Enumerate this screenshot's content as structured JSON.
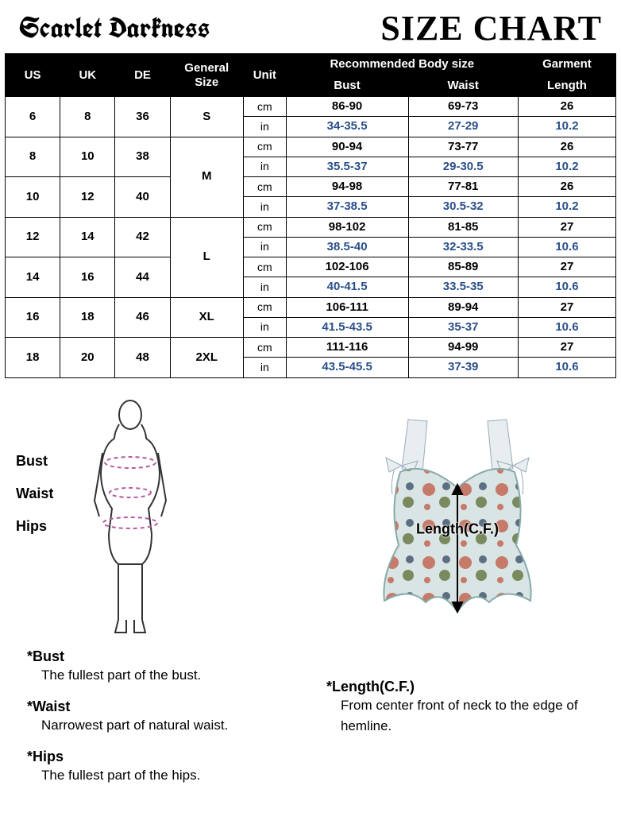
{
  "header": {
    "brand": "Scarlet Darkness",
    "title": "SIZE CHART"
  },
  "table": {
    "type": "table",
    "background_color": "#ffffff",
    "header_bg": "#000000",
    "header_color": "#ffffff",
    "border_color": "#000000",
    "cm_color": "#000000",
    "in_color": "#2a4f8a",
    "header_fontsize_pt": 11,
    "body_fontsize_pt": 11,
    "columns_top": [
      "US",
      "UK",
      "DE",
      "General Size",
      "Unit",
      "Recommended Body size",
      "Garment"
    ],
    "columns_sub": [
      "Bust",
      "Waist",
      "Length"
    ],
    "column_widths_pct": [
      9,
      9,
      9,
      12,
      7,
      20,
      18,
      16
    ],
    "rows": [
      {
        "us": "6",
        "uk": "8",
        "de": "36",
        "gen": "S",
        "gen_span": 1,
        "cm": {
          "bust": "86-90",
          "waist": "69-73",
          "length": "26"
        },
        "in": {
          "bust": "34-35.5",
          "waist": "27-29",
          "length": "10.2"
        }
      },
      {
        "us": "8",
        "uk": "10",
        "de": "38",
        "gen": "M",
        "gen_span": 2,
        "cm": {
          "bust": "90-94",
          "waist": "73-77",
          "length": "26"
        },
        "in": {
          "bust": "35.5-37",
          "waist": "29-30.5",
          "length": "10.2"
        }
      },
      {
        "us": "10",
        "uk": "12",
        "de": "40",
        "gen": null,
        "gen_span": 0,
        "cm": {
          "bust": "94-98",
          "waist": "77-81",
          "length": "26"
        },
        "in": {
          "bust": "37-38.5",
          "waist": "30.5-32",
          "length": "10.2"
        }
      },
      {
        "us": "12",
        "uk": "14",
        "de": "42",
        "gen": "L",
        "gen_span": 2,
        "cm": {
          "bust": "98-102",
          "waist": "81-85",
          "length": "27"
        },
        "in": {
          "bust": "38.5-40",
          "waist": "32-33.5",
          "length": "10.6"
        }
      },
      {
        "us": "14",
        "uk": "16",
        "de": "44",
        "gen": null,
        "gen_span": 0,
        "cm": {
          "bust": "102-106",
          "waist": "85-89",
          "length": "27"
        },
        "in": {
          "bust": "40-41.5",
          "waist": "33.5-35",
          "length": "10.6"
        }
      },
      {
        "us": "16",
        "uk": "18",
        "de": "46",
        "gen": "XL",
        "gen_span": 1,
        "cm": {
          "bust": "106-111",
          "waist": "89-94",
          "length": "27"
        },
        "in": {
          "bust": "41.5-43.5",
          "waist": "35-37",
          "length": "10.6"
        }
      },
      {
        "us": "18",
        "uk": "20",
        "de": "48",
        "gen": "2XL",
        "gen_span": 1,
        "cm": {
          "bust": "111-116",
          "waist": "94-99",
          "length": "27"
        },
        "in": {
          "bust": "43.5-45.5",
          "waist": "37-39",
          "length": "10.6"
        }
      }
    ],
    "unit_labels": {
      "cm": "cm",
      "in": "in"
    }
  },
  "body_diagram": {
    "labels": [
      "Bust",
      "Waist",
      "Hips"
    ],
    "measure_line_color": "#b55ca0",
    "outline_color": "#333333"
  },
  "garment_diagram": {
    "label": "Length(C.F.)",
    "fabric_bg": "#d9e4e4",
    "flower_colors": [
      "#c57a6a",
      "#7a8a5e",
      "#5c6f82"
    ],
    "bow_color": "#e8eef0",
    "arrow_color": "#000000"
  },
  "definitions": {
    "left": [
      {
        "term": "*Bust",
        "text": "The fullest part of the bust."
      },
      {
        "term": "*Waist",
        "text": "Narrowest part of natural waist."
      },
      {
        "term": "*Hips",
        "text": "The fullest part of the hips."
      }
    ],
    "right": [
      {
        "term": "*Length(C.F.)",
        "text": "From center front of neck to the edge of hemline."
      }
    ]
  }
}
